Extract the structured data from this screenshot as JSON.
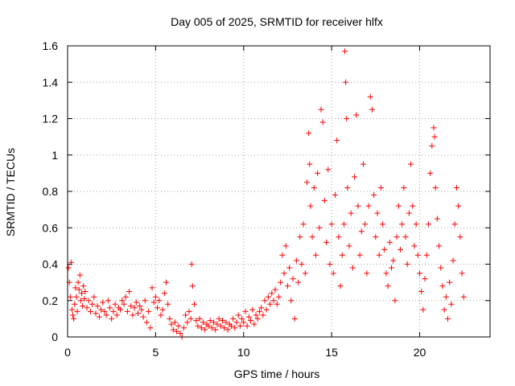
{
  "chart_data": {
    "type": "scatter",
    "title": "Day 005 of 2025, SRMTID for receiver hlfx",
    "xlabel": "GPS time / hours",
    "ylabel": "SRMTID / TECUs",
    "xlim": [
      0,
      24
    ],
    "ylim": [
      0,
      1.6
    ],
    "grid": true,
    "marker": "+",
    "color": "#ff0000",
    "x_ticks": [
      0,
      5,
      10,
      15,
      20
    ],
    "x_tick_labels": [
      "0",
      "5",
      "10",
      "15",
      "20"
    ],
    "y_ticks": [
      0,
      0.2,
      0.4,
      0.6,
      0.8,
      1.0,
      1.2,
      1.4,
      1.6
    ],
    "y_tick_labels": [
      "0",
      "0.2",
      "0.4",
      "0.6",
      "0.8",
      "1",
      "1.2",
      "1.4",
      "1.6"
    ],
    "series": [
      {
        "name": "SRMTID",
        "points": [
          [
            0.05,
            0.38
          ],
          [
            0.1,
            0.3
          ],
          [
            0.15,
            0.22
          ],
          [
            0.2,
            0.41
          ],
          [
            0.25,
            0.15
          ],
          [
            0.3,
            0.12
          ],
          [
            0.35,
            0.1
          ],
          [
            0.4,
            0.18
          ],
          [
            0.45,
            0.27
          ],
          [
            0.5,
            0.22
          ],
          [
            0.55,
            0.14
          ],
          [
            0.6,
            0.3
          ],
          [
            0.65,
            0.26
          ],
          [
            0.7,
            0.34
          ],
          [
            0.75,
            0.2
          ],
          [
            0.8,
            0.24
          ],
          [
            0.85,
            0.17
          ],
          [
            0.9,
            0.28
          ],
          [
            0.95,
            0.21
          ],
          [
            1.0,
            0.25
          ],
          [
            1.1,
            0.16
          ],
          [
            1.2,
            0.2
          ],
          [
            1.3,
            0.14
          ],
          [
            1.4,
            0.18
          ],
          [
            1.5,
            0.22
          ],
          [
            1.6,
            0.13
          ],
          [
            1.7,
            0.17
          ],
          [
            1.8,
            0.11
          ],
          [
            1.9,
            0.15
          ],
          [
            2.0,
            0.19
          ],
          [
            2.1,
            0.14
          ],
          [
            2.2,
            0.12
          ],
          [
            2.3,
            0.2
          ],
          [
            2.4,
            0.16
          ],
          [
            2.5,
            0.1
          ],
          [
            2.6,
            0.14
          ],
          [
            2.7,
            0.18
          ],
          [
            2.8,
            0.12
          ],
          [
            2.9,
            0.16
          ],
          [
            3.0,
            0.15
          ],
          [
            3.1,
            0.2
          ],
          [
            3.2,
            0.18
          ],
          [
            3.3,
            0.22
          ],
          [
            3.4,
            0.14
          ],
          [
            3.5,
            0.25
          ],
          [
            3.6,
            0.17
          ],
          [
            3.7,
            0.12
          ],
          [
            3.8,
            0.16
          ],
          [
            3.9,
            0.19
          ],
          [
            4.0,
            0.13
          ],
          [
            4.1,
            0.17
          ],
          [
            4.2,
            0.15
          ],
          [
            4.3,
            0.11
          ],
          [
            4.4,
            0.2
          ],
          [
            4.5,
            0.08
          ],
          [
            4.6,
            0.14
          ],
          [
            4.7,
            0.05
          ],
          [
            4.8,
            0.27
          ],
          [
            4.9,
            0.19
          ],
          [
            5.0,
            0.22
          ],
          [
            5.1,
            0.16
          ],
          [
            5.2,
            0.2
          ],
          [
            5.3,
            0.12
          ],
          [
            5.4,
            0.15
          ],
          [
            5.5,
            0.24
          ],
          [
            5.6,
            0.3
          ],
          [
            5.7,
            0.18
          ],
          [
            5.8,
            0.1
          ],
          [
            5.9,
            0.07
          ],
          [
            6.0,
            0.04
          ],
          [
            6.1,
            0.08
          ],
          [
            6.2,
            0.03
          ],
          [
            6.3,
            0.06
          ],
          [
            6.4,
            0.02
          ],
          [
            6.5,
            0.0
          ],
          [
            6.6,
            0.05
          ],
          [
            6.7,
            0.12
          ],
          [
            6.8,
            0.08
          ],
          [
            6.9,
            0.14
          ],
          [
            7.0,
            0.1
          ],
          [
            7.05,
            0.4
          ],
          [
            7.1,
            0.28
          ],
          [
            7.2,
            0.18
          ],
          [
            7.3,
            0.09
          ],
          [
            7.4,
            0.06
          ],
          [
            7.5,
            0.1
          ],
          [
            7.6,
            0.05
          ],
          [
            7.7,
            0.08
          ],
          [
            7.8,
            0.04
          ],
          [
            7.9,
            0.07
          ],
          [
            8.0,
            0.06
          ],
          [
            8.1,
            0.09
          ],
          [
            8.2,
            0.05
          ],
          [
            8.3,
            0.08
          ],
          [
            8.4,
            0.04
          ],
          [
            8.5,
            0.07
          ],
          [
            8.6,
            0.1
          ],
          [
            8.7,
            0.06
          ],
          [
            8.8,
            0.09
          ],
          [
            8.9,
            0.05
          ],
          [
            9.0,
            0.08
          ],
          [
            9.1,
            0.04
          ],
          [
            9.2,
            0.07
          ],
          [
            9.3,
            0.06
          ],
          [
            9.4,
            0.1
          ],
          [
            9.5,
            0.05
          ],
          [
            9.6,
            0.08
          ],
          [
            9.7,
            0.12
          ],
          [
            9.8,
            0.06
          ],
          [
            9.9,
            0.1
          ],
          [
            10.0,
            0.08
          ],
          [
            10.1,
            0.14
          ],
          [
            10.2,
            0.06
          ],
          [
            10.3,
            0.11
          ],
          [
            10.4,
            0.09
          ],
          [
            10.5,
            0.15
          ],
          [
            10.6,
            0.07
          ],
          [
            10.7,
            0.12
          ],
          [
            10.8,
            0.1
          ],
          [
            10.9,
            0.14
          ],
          [
            11.0,
            0.16
          ],
          [
            11.1,
            0.12
          ],
          [
            11.2,
            0.2
          ],
          [
            11.3,
            0.15
          ],
          [
            11.4,
            0.22
          ],
          [
            11.5,
            0.18
          ],
          [
            11.6,
            0.24
          ],
          [
            11.7,
            0.2
          ],
          [
            11.8,
            0.26
          ],
          [
            11.9,
            0.18
          ],
          [
            12.0,
            0.22
          ],
          [
            12.1,
            0.3
          ],
          [
            12.2,
            0.45
          ],
          [
            12.3,
            0.35
          ],
          [
            12.4,
            0.5
          ],
          [
            12.5,
            0.28
          ],
          [
            12.6,
            0.38
          ],
          [
            12.7,
            0.2
          ],
          [
            12.8,
            0.32
          ],
          [
            12.9,
            0.1
          ],
          [
            13.0,
            0.42
          ],
          [
            13.1,
            0.3
          ],
          [
            13.2,
            0.55
          ],
          [
            13.3,
            0.4
          ],
          [
            13.4,
            0.62
          ],
          [
            13.5,
            0.35
          ],
          [
            13.6,
            0.85
          ],
          [
            13.7,
            1.12
          ],
          [
            13.75,
            0.95
          ],
          [
            13.8,
            0.72
          ],
          [
            13.9,
            0.55
          ],
          [
            14.0,
            0.82
          ],
          [
            14.1,
            0.45
          ],
          [
            14.2,
            0.9
          ],
          [
            14.3,
            0.6
          ],
          [
            14.4,
            1.25
          ],
          [
            14.5,
            1.18
          ],
          [
            14.6,
            0.75
          ],
          [
            14.7,
            0.52
          ],
          [
            14.8,
            0.92
          ],
          [
            14.9,
            0.4
          ],
          [
            15.0,
            0.62
          ],
          [
            15.1,
            0.35
          ],
          [
            15.2,
            0.78
          ],
          [
            15.3,
            1.08
          ],
          [
            15.4,
            0.55
          ],
          [
            15.5,
            0.28
          ],
          [
            15.6,
            0.45
          ],
          [
            15.7,
            0.62
          ],
          [
            15.75,
            1.57
          ],
          [
            15.8,
            1.4
          ],
          [
            15.85,
            1.2
          ],
          [
            15.9,
            0.82
          ],
          [
            16.0,
            0.5
          ],
          [
            16.1,
            0.68
          ],
          [
            16.2,
            0.38
          ],
          [
            16.3,
            0.88
          ],
          [
            16.4,
            1.22
          ],
          [
            16.5,
            0.72
          ],
          [
            16.6,
            0.45
          ],
          [
            16.7,
            0.58
          ],
          [
            16.8,
            0.95
          ],
          [
            16.9,
            0.62
          ],
          [
            17.0,
            0.35
          ],
          [
            17.1,
            0.72
          ],
          [
            17.2,
            1.32
          ],
          [
            17.3,
            1.25
          ],
          [
            17.4,
            0.78
          ],
          [
            17.5,
            0.55
          ],
          [
            17.6,
            0.68
          ],
          [
            17.7,
            0.45
          ],
          [
            17.8,
            0.82
          ],
          [
            17.9,
            0.62
          ],
          [
            18.0,
            0.48
          ],
          [
            18.1,
            0.35
          ],
          [
            18.2,
            0.28
          ],
          [
            18.3,
            0.52
          ],
          [
            18.4,
            0.38
          ],
          [
            18.5,
            0.42
          ],
          [
            18.6,
            0.2
          ],
          [
            18.7,
            0.55
          ],
          [
            18.8,
            0.72
          ],
          [
            18.9,
            0.48
          ],
          [
            19.0,
            0.62
          ],
          [
            19.1,
            0.82
          ],
          [
            19.2,
            0.55
          ],
          [
            19.3,
            0.4
          ],
          [
            19.4,
            0.68
          ],
          [
            19.5,
            0.95
          ],
          [
            19.6,
            0.72
          ],
          [
            19.7,
            0.5
          ],
          [
            19.8,
            0.62
          ],
          [
            19.9,
            0.45
          ],
          [
            20.0,
            0.35
          ],
          [
            20.1,
            0.25
          ],
          [
            20.2,
            0.15
          ],
          [
            20.3,
            0.32
          ],
          [
            20.4,
            0.45
          ],
          [
            20.5,
            0.62
          ],
          [
            20.6,
            0.9
          ],
          [
            20.7,
            1.05
          ],
          [
            20.8,
            1.15
          ],
          [
            20.85,
            1.1
          ],
          [
            20.9,
            0.82
          ],
          [
            21.0,
            0.65
          ],
          [
            21.1,
            0.5
          ],
          [
            21.2,
            0.38
          ],
          [
            21.3,
            0.28
          ],
          [
            21.4,
            0.15
          ],
          [
            21.5,
            0.22
          ],
          [
            21.6,
            0.1
          ],
          [
            21.7,
            0.3
          ],
          [
            21.8,
            0.18
          ],
          [
            21.9,
            0.42
          ],
          [
            22.0,
            0.62
          ],
          [
            22.1,
            0.82
          ],
          [
            22.2,
            0.72
          ],
          [
            22.3,
            0.55
          ],
          [
            22.4,
            0.35
          ],
          [
            22.5,
            0.22
          ]
        ]
      }
    ]
  }
}
